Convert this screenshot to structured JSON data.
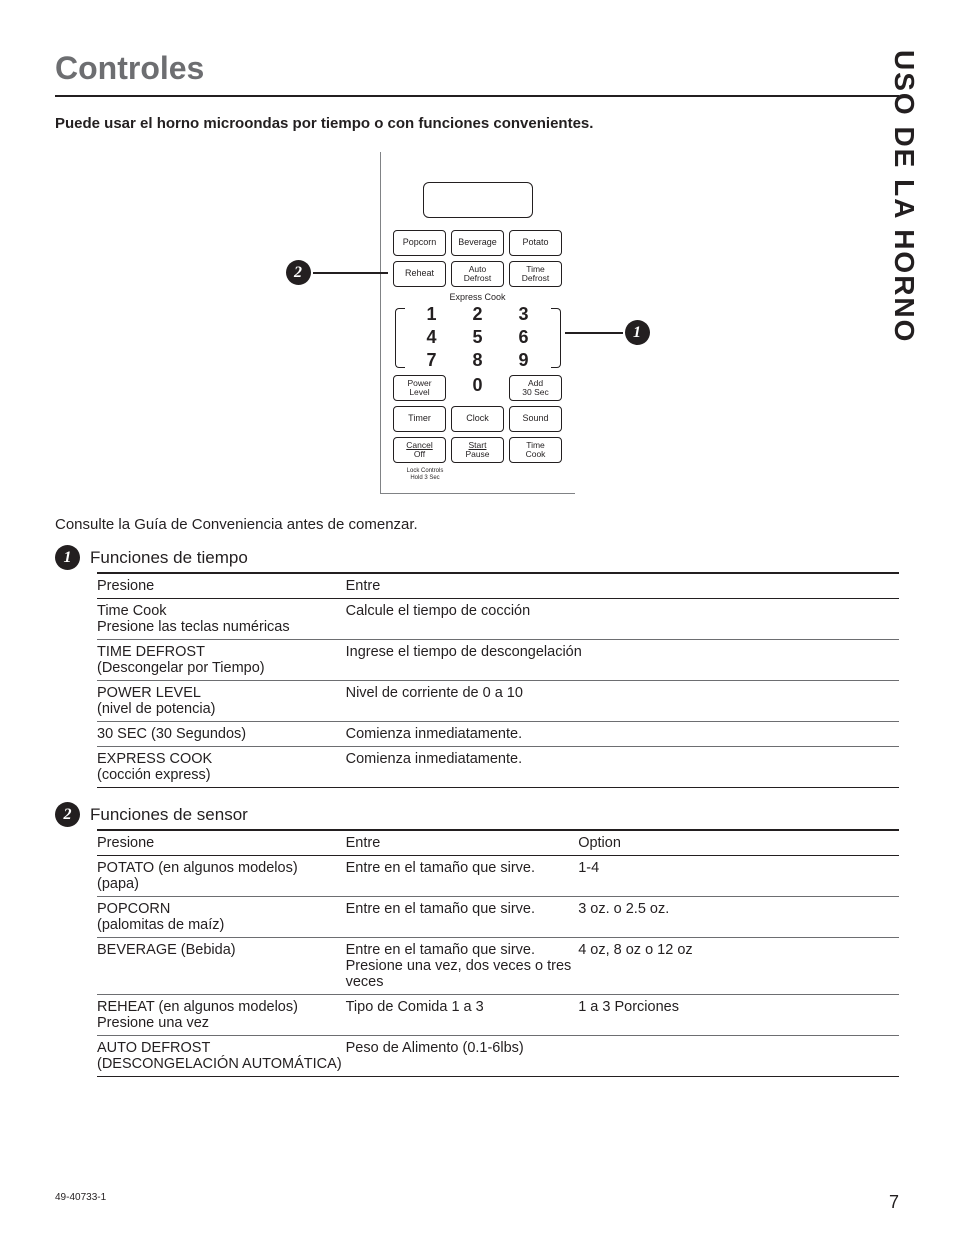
{
  "side_title": "USO DE LA HORNO",
  "page_title": "Controles",
  "intro": "Puede usar el horno microondas por tiempo o con funciones convenientes.",
  "panel": {
    "row1": [
      "Popcorn",
      "Beverage",
      "Potato"
    ],
    "row2": [
      {
        "l": "Reheat"
      },
      {
        "l1": "Auto",
        "l2": "Defrost"
      },
      {
        "l1": "Time",
        "l2": "Defrost"
      }
    ],
    "express_label": "Express Cook",
    "nums": [
      [
        "1",
        "2",
        "3"
      ],
      [
        "4",
        "5",
        "6"
      ],
      [
        "7",
        "8",
        "9"
      ]
    ],
    "row_pl": [
      {
        "l1": "Power",
        "l2": "Level"
      },
      {
        "num": "0"
      },
      {
        "l1": "Add",
        "l2": "30 Sec"
      }
    ],
    "row_tcs": [
      "Timer",
      "Clock",
      "Sound"
    ],
    "row_last": [
      {
        "l1": "Cancel",
        "l2": "Off",
        "under": true
      },
      {
        "l1": "Start",
        "l2": "Pause",
        "under": true
      },
      {
        "l1": "Time",
        "l2": "Cook"
      }
    ],
    "lock_note1": "Lock Controls",
    "lock_note2": "Hold 3 Sec",
    "callout1": "1",
    "callout2": "2"
  },
  "guide_note": "Consulte la Guía de Conveniencia antes de comenzar.",
  "sec1": {
    "num": "1",
    "title": "Funciones de tiempo",
    "headers": [
      "Presione",
      "Entre"
    ],
    "rows": [
      {
        "a1": "Time Cook",
        "a2": "Presione las teclas numéricas",
        "b": "Calcule el tiempo de cocción"
      },
      {
        "a1": "TIME DEFROST",
        "a2": "(Descongelar por Tiempo)",
        "b": "Ingrese el tiempo de descongelación"
      },
      {
        "a1": "POWER LEVEL",
        "a2": "(nivel de potencia)",
        "b": "Nivel de corriente de 0 a 10"
      },
      {
        "a1": "30 SEC (30 Segundos)",
        "a2": "",
        "b": "Comienza inmediatamente."
      },
      {
        "a1": "EXPRESS COOK",
        "a2": "(cocción express)",
        "b": "Comienza inmediatamente."
      }
    ]
  },
  "sec2": {
    "num": "2",
    "title": "Funciones de sensor",
    "headers": [
      "Presione",
      "Entre",
      "Option"
    ],
    "rows": [
      {
        "a1": "POTATO (en algunos modelos)",
        "a2": "(papa)",
        "b": "Entre en el tamaño que sirve.",
        "c": "1-4"
      },
      {
        "a1": "POPCORN",
        "a2": "(palomitas de maíz)",
        "b": "Entre en el tamaño que sirve.",
        "c": "3 oz. o 2.5 oz."
      },
      {
        "a1": "BEVERAGE (Bebida)",
        "a2": "",
        "b": "Entre en el tamaño que sirve.",
        "b2": "Presione una vez, dos veces o tres veces",
        "c": "4 oz, 8 oz o 12 oz"
      },
      {
        "a1": "REHEAT (en algunos modelos)",
        "a2": "Presione una vez",
        "b": "Tipo de Comida 1 a 3",
        "c": "1 a 3 Porciones"
      },
      {
        "a1": "AUTO DEFROST",
        "a2": "(DESCONGELACIÓN AUTOMÁTICA)",
        "b": "Peso de Alimento (0.1-6lbs)",
        "c": ""
      }
    ]
  },
  "footer_code": "49-40733-1",
  "page_number": "7"
}
